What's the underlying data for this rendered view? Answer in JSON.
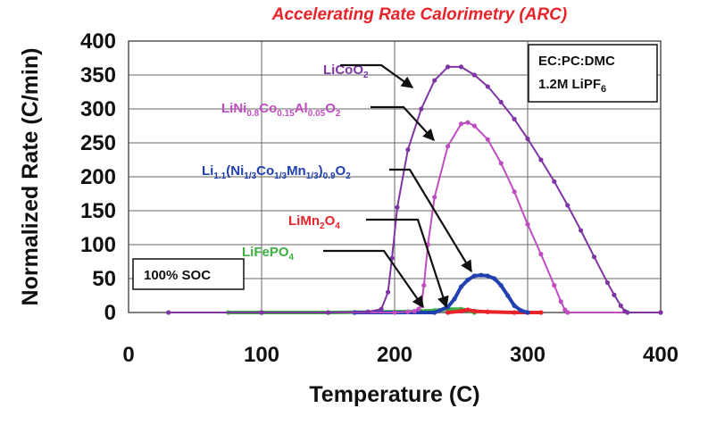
{
  "chart_data": {
    "type": "line",
    "title": "Accelerating Rate Calorimetry (ARC)",
    "xlabel": "Temperature (C)",
    "ylabel": "Normalized Rate (C/min)",
    "xlim": [
      0,
      400
    ],
    "ylim": [
      0,
      400
    ],
    "x_ticks": [
      "0",
      "100",
      "200",
      "300",
      "400"
    ],
    "y_ticks": [
      "0",
      "50",
      "100",
      "150",
      "200",
      "250",
      "300",
      "350",
      "400"
    ],
    "grid": true,
    "annotations": {
      "electrolyte": "EC:PC:DMC",
      "salt": "1.2M LiPF",
      "salt_sub": "6",
      "soc": "100% SOC"
    },
    "series": [
      {
        "name": "LiCoO2",
        "color": "#7e35a3",
        "x": [
          30,
          100,
          150,
          180,
          190,
          195,
          198,
          202,
          210,
          220,
          230,
          240,
          250,
          260,
          270,
          280,
          290,
          300,
          310,
          320,
          330,
          340,
          350,
          360,
          365,
          370,
          373,
          375,
          400
        ],
        "y": [
          0,
          0,
          0,
          1,
          5,
          30,
          80,
          155,
          240,
          300,
          342,
          362,
          362,
          350,
          333,
          310,
          285,
          256,
          225,
          193,
          158,
          121,
          82,
          44,
          26,
          10,
          2,
          0,
          0
        ]
      },
      {
        "name": "LiNi0.8Co0.15Al0.05O2",
        "color": "#c04dc0",
        "x": [
          100,
          200,
          210,
          215,
          218,
          220,
          222,
          225,
          230,
          240,
          250,
          255,
          260,
          270,
          280,
          290,
          300,
          310,
          320,
          325,
          328,
          330,
          400
        ],
        "y": [
          0,
          0,
          1,
          2,
          5,
          10,
          40,
          100,
          170,
          245,
          278,
          280,
          275,
          255,
          220,
          178,
          130,
          86,
          40,
          16,
          4,
          0,
          0
        ]
      },
      {
        "name": "Li1.1(Ni1/3Co1/3Mn1/3)0.9O2",
        "color": "#2040b0",
        "x": [
          170,
          230,
          240,
          245,
          250,
          255,
          260,
          265,
          270,
          275,
          280,
          285,
          290,
          295,
          300
        ],
        "y": [
          0,
          0,
          8,
          20,
          38,
          48,
          54,
          55,
          54,
          50,
          40,
          25,
          10,
          3,
          0
        ]
      },
      {
        "name": "LiMn2O4",
        "color": "#e8232a",
        "x": [
          240,
          250,
          255,
          260,
          270,
          290,
          300,
          310
        ],
        "y": [
          0,
          2,
          4,
          2,
          1,
          0,
          0,
          0
        ]
      },
      {
        "name": "LiFePO4",
        "color": "#3cb040",
        "x": [
          75,
          100,
          150,
          200,
          220,
          230,
          240,
          250,
          255,
          260
        ],
        "y": [
          0,
          0,
          0,
          1,
          2,
          3,
          5,
          5,
          3,
          0
        ]
      }
    ],
    "label_text": {
      "licoo2": [
        "LiCoO",
        "2",
        ""
      ],
      "nca": [
        "LiNi",
        "0.8",
        "Co",
        "0.15",
        "Al",
        "0.05",
        "O",
        "2",
        ""
      ],
      "nmc": [
        "Li",
        "1.1",
        "(Ni",
        "1/3",
        "Co",
        "1/3",
        "Mn",
        "1/3",
        ")",
        "0.9",
        "O",
        "2",
        ""
      ],
      "lmo": [
        "LiMn",
        "2",
        "O",
        "4",
        ""
      ],
      "lfp": [
        "LiFePO",
        "4",
        ""
      ]
    }
  }
}
